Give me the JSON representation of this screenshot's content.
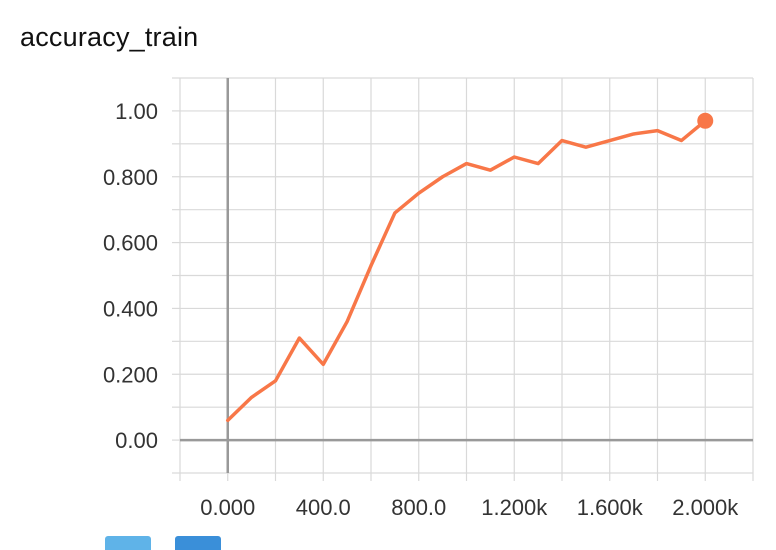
{
  "title": "accuracy_train",
  "colors": {
    "line": "#f87748",
    "grid": "#d9d9d9",
    "axis": "#999999",
    "text": "#333333"
  },
  "chart_data": {
    "type": "line",
    "title": "accuracy_train",
    "xlabel": "",
    "ylabel": "",
    "xlim": [
      -200,
      2200
    ],
    "ylim": [
      -0.1,
      1.1
    ],
    "x_ticks": [
      0,
      400,
      800,
      1200,
      1600,
      2000
    ],
    "x_tick_labels": [
      "0.000",
      "400.0",
      "800.0",
      "1.200k",
      "1.600k",
      "2.000k"
    ],
    "y_ticks": [
      0,
      0.2,
      0.4,
      0.6,
      0.8,
      1.0
    ],
    "y_tick_labels": [
      "0.00",
      "0.200",
      "0.400",
      "0.600",
      "0.800",
      "1.00"
    ],
    "grid": true,
    "series": [
      {
        "x": [
          0,
          100,
          200,
          300,
          400,
          500,
          600,
          700,
          800,
          900,
          1000,
          1100,
          1200,
          1300,
          1400,
          1500,
          1600,
          1700,
          1800,
          1900,
          2000
        ],
        "y": [
          0.06,
          0.13,
          0.18,
          0.31,
          0.23,
          0.36,
          0.53,
          0.69,
          0.75,
          0.8,
          0.84,
          0.82,
          0.86,
          0.84,
          0.91,
          0.89,
          0.91,
          0.93,
          0.94,
          0.91,
          0.97
        ]
      }
    ],
    "highlight_point": {
      "x": 2000,
      "y": 0.97
    }
  }
}
